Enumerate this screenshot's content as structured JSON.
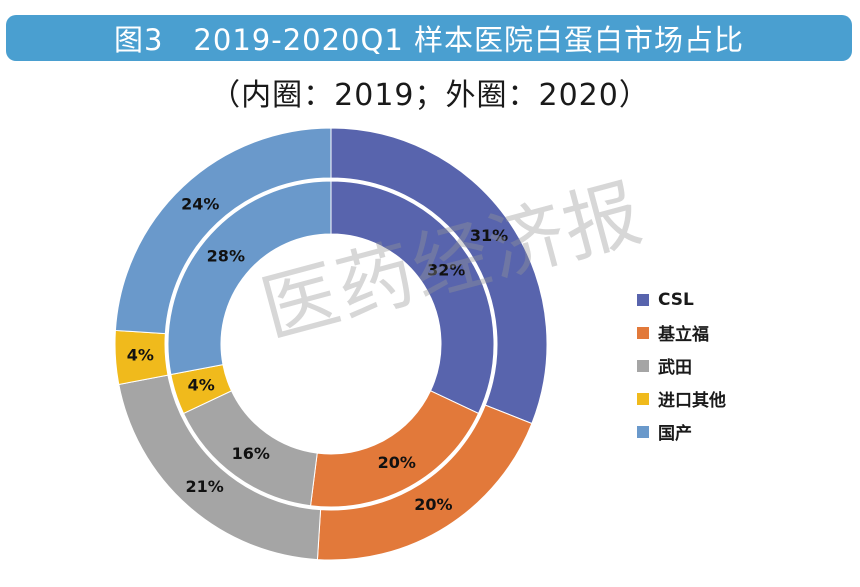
{
  "title": "图3　2019-2020Q1 样本医院白蛋白市场占比",
  "subtitle": "（内圈：2019；外圈：2020）",
  "watermark": "医药经济报",
  "chart_data": {
    "type": "pie",
    "subtype": "doughnut",
    "categories": [
      "CSL",
      "基立福",
      "武田",
      "进口其他",
      "国产"
    ],
    "colors": [
      "#5864ad",
      "#e2793a",
      "#a5a5a5",
      "#f0ba1c",
      "#6a99cb"
    ],
    "series": [
      {
        "ring": "inner",
        "values": [
          32,
          20,
          16,
          4,
          28
        ],
        "labels": [
          "32%",
          "20%",
          "16%",
          "4%",
          "28%"
        ]
      },
      {
        "ring": "outer",
        "values": [
          31,
          20,
          21,
          4,
          24
        ],
        "labels": [
          "31%",
          "20%",
          "21%",
          "4%",
          "24%"
        ]
      }
    ],
    "legend_position": "right"
  }
}
